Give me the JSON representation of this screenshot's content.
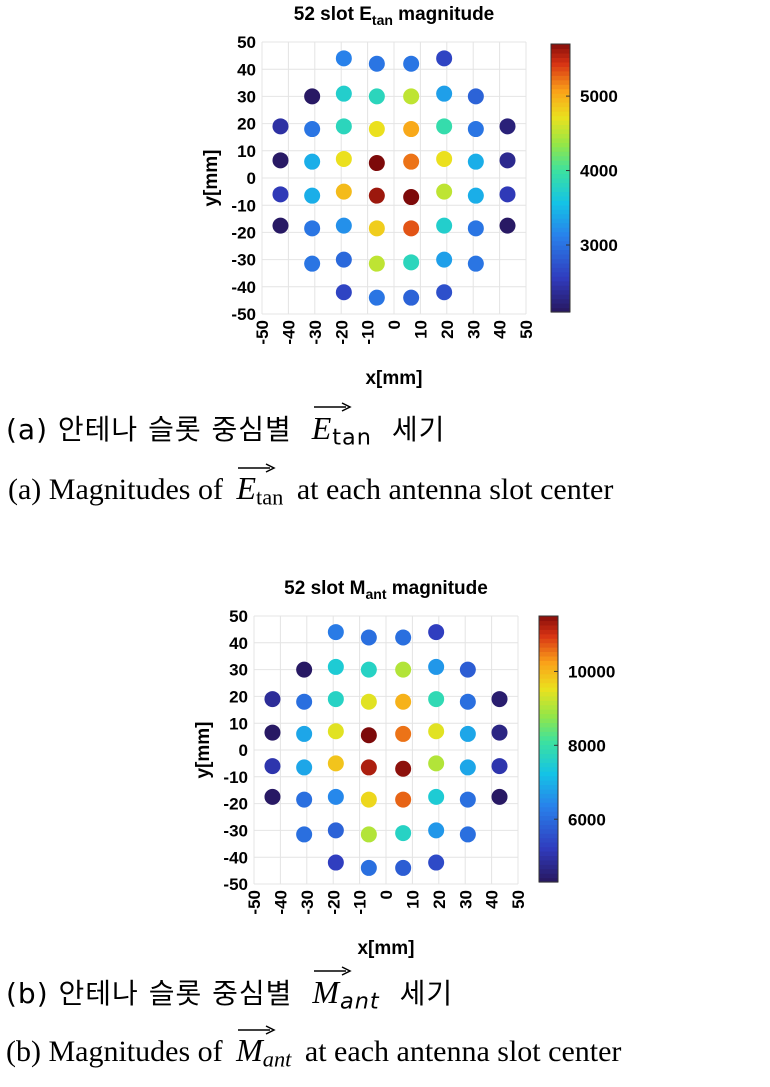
{
  "chart_data": [
    {
      "type": "scatter",
      "title": "52 slot E_tan magnitude",
      "title_main": "52 slot E",
      "title_sub": "tan",
      "title_tail": " magnitude",
      "xlabel": "x[mm]",
      "ylabel": "y[mm]",
      "xlim": [
        -50,
        50
      ],
      "ylim": [
        -50,
        50
      ],
      "xticks": [
        -50,
        -40,
        -30,
        -20,
        -10,
        0,
        10,
        20,
        30,
        40,
        50
      ],
      "yticks": [
        -50,
        -40,
        -30,
        -20,
        -10,
        0,
        10,
        20,
        30,
        40,
        50
      ],
      "grid": true,
      "colorbar": {
        "min": 2100,
        "max": 5700,
        "ticks": [
          3000,
          4000,
          5000
        ]
      },
      "points": [
        {
          "x": -19,
          "y": 44,
          "value": 3100
        },
        {
          "x": -6.5,
          "y": 42,
          "value": 3000
        },
        {
          "x": 6.5,
          "y": 42,
          "value": 3000
        },
        {
          "x": 19,
          "y": 44,
          "value": 2600
        },
        {
          "x": -31,
          "y": 30,
          "value": 2100
        },
        {
          "x": -19,
          "y": 31,
          "value": 3700
        },
        {
          "x": -6.5,
          "y": 30,
          "value": 3800
        },
        {
          "x": 6.5,
          "y": 30,
          "value": 4500
        },
        {
          "x": 19,
          "y": 31,
          "value": 3300
        },
        {
          "x": 31,
          "y": 30,
          "value": 2850
        },
        {
          "x": -43,
          "y": 19,
          "value": 2400
        },
        {
          "x": -31,
          "y": 18,
          "value": 3000
        },
        {
          "x": -19,
          "y": 19,
          "value": 3800
        },
        {
          "x": -6.5,
          "y": 18,
          "value": 4700
        },
        {
          "x": 6.5,
          "y": 18,
          "value": 5000
        },
        {
          "x": 19,
          "y": 19,
          "value": 3900
        },
        {
          "x": 31,
          "y": 18,
          "value": 3000
        },
        {
          "x": 43,
          "y": 19,
          "value": 2200
        },
        {
          "x": -43,
          "y": 6.5,
          "value": 2100
        },
        {
          "x": -31,
          "y": 6,
          "value": 3400
        },
        {
          "x": -19,
          "y": 7,
          "value": 4700
        },
        {
          "x": -6.5,
          "y": 5.5,
          "value": 5700
        },
        {
          "x": 6.5,
          "y": 6,
          "value": 5200
        },
        {
          "x": 19,
          "y": 7,
          "value": 4700
        },
        {
          "x": 31,
          "y": 6,
          "value": 3400
        },
        {
          "x": 43,
          "y": 6.5,
          "value": 2300
        },
        {
          "x": -43,
          "y": -6,
          "value": 2500
        },
        {
          "x": -31,
          "y": -6.5,
          "value": 3400
        },
        {
          "x": -19,
          "y": -5,
          "value": 4900
        },
        {
          "x": -6.5,
          "y": -6.5,
          "value": 5600
        },
        {
          "x": 6.5,
          "y": -7,
          "value": 5700
        },
        {
          "x": 19,
          "y": -5,
          "value": 4500
        },
        {
          "x": 31,
          "y": -6.5,
          "value": 3400
        },
        {
          "x": 43,
          "y": -6,
          "value": 2500
        },
        {
          "x": -43,
          "y": -17.5,
          "value": 2100
        },
        {
          "x": -31,
          "y": -18.5,
          "value": 3000
        },
        {
          "x": -19,
          "y": -17.5,
          "value": 3200
        },
        {
          "x": -6.5,
          "y": -18.5,
          "value": 4800
        },
        {
          "x": 6.5,
          "y": -18.5,
          "value": 5300
        },
        {
          "x": 19,
          "y": -17.5,
          "value": 3700
        },
        {
          "x": 31,
          "y": -18.5,
          "value": 3000
        },
        {
          "x": 43,
          "y": -17.5,
          "value": 2100
        },
        {
          "x": -31,
          "y": -31.5,
          "value": 3000
        },
        {
          "x": -19,
          "y": -30,
          "value": 2900
        },
        {
          "x": -6.5,
          "y": -31.5,
          "value": 4500
        },
        {
          "x": 6.5,
          "y": -31,
          "value": 3800
        },
        {
          "x": 19,
          "y": -30,
          "value": 3300
        },
        {
          "x": 31,
          "y": -31.5,
          "value": 3000
        },
        {
          "x": -19,
          "y": -42,
          "value": 2600
        },
        {
          "x": -6.5,
          "y": -44,
          "value": 3000
        },
        {
          "x": 6.5,
          "y": -44,
          "value": 2850
        },
        {
          "x": 19,
          "y": -42,
          "value": 2700
        }
      ]
    },
    {
      "type": "scatter",
      "title": "52 slot M_ant magnitude",
      "title_main": "52 slot M",
      "title_sub": "ant",
      "title_tail": " magnitude",
      "xlabel": "x[mm]",
      "ylabel": "y[mm]",
      "xlim": [
        -50,
        50
      ],
      "ylim": [
        -50,
        50
      ],
      "xticks": [
        -50,
        -40,
        -30,
        -20,
        -10,
        0,
        10,
        20,
        30,
        40,
        50
      ],
      "yticks": [
        -50,
        -40,
        -30,
        -20,
        -10,
        0,
        10,
        20,
        30,
        40,
        50
      ],
      "grid": true,
      "colorbar": {
        "min": 4300,
        "max": 11500,
        "ticks": [
          6000,
          8000,
          10000
        ]
      },
      "points": [
        {
          "x": -19,
          "y": 44,
          "value": 6200
        },
        {
          "x": -6.5,
          "y": 42,
          "value": 6000
        },
        {
          "x": 6.5,
          "y": 42,
          "value": 6000
        },
        {
          "x": 19,
          "y": 44,
          "value": 5200
        },
        {
          "x": -31,
          "y": 30,
          "value": 4300
        },
        {
          "x": -19,
          "y": 31,
          "value": 7400
        },
        {
          "x": -6.5,
          "y": 30,
          "value": 7600
        },
        {
          "x": 6.5,
          "y": 30,
          "value": 9000
        },
        {
          "x": 19,
          "y": 31,
          "value": 6600
        },
        {
          "x": 31,
          "y": 30,
          "value": 5700
        },
        {
          "x": -43,
          "y": 19,
          "value": 4800
        },
        {
          "x": -31,
          "y": 18,
          "value": 6000
        },
        {
          "x": -19,
          "y": 19,
          "value": 7600
        },
        {
          "x": -6.5,
          "y": 18,
          "value": 9400
        },
        {
          "x": 6.5,
          "y": 18,
          "value": 10000
        },
        {
          "x": 19,
          "y": 19,
          "value": 7800
        },
        {
          "x": 31,
          "y": 18,
          "value": 6000
        },
        {
          "x": 43,
          "y": 19,
          "value": 4400
        },
        {
          "x": -43,
          "y": 6.5,
          "value": 4300
        },
        {
          "x": -31,
          "y": 6,
          "value": 6800
        },
        {
          "x": -19,
          "y": 7,
          "value": 9400
        },
        {
          "x": -6.5,
          "y": 5.5,
          "value": 11500
        },
        {
          "x": 6.5,
          "y": 6,
          "value": 10500
        },
        {
          "x": 19,
          "y": 7,
          "value": 9400
        },
        {
          "x": 31,
          "y": 6,
          "value": 6800
        },
        {
          "x": 43,
          "y": 6.5,
          "value": 4600
        },
        {
          "x": -43,
          "y": -6,
          "value": 5000
        },
        {
          "x": -31,
          "y": -6.5,
          "value": 6800
        },
        {
          "x": -19,
          "y": -5,
          "value": 9800
        },
        {
          "x": -6.5,
          "y": -6.5,
          "value": 11200
        },
        {
          "x": 6.5,
          "y": -7,
          "value": 11400
        },
        {
          "x": 19,
          "y": -5,
          "value": 9000
        },
        {
          "x": 31,
          "y": -6.5,
          "value": 6800
        },
        {
          "x": 43,
          "y": -6,
          "value": 5000
        },
        {
          "x": -43,
          "y": -17.5,
          "value": 4300
        },
        {
          "x": -31,
          "y": -18.5,
          "value": 6000
        },
        {
          "x": -19,
          "y": -17.5,
          "value": 6400
        },
        {
          "x": -6.5,
          "y": -18.5,
          "value": 9600
        },
        {
          "x": 6.5,
          "y": -18.5,
          "value": 10600
        },
        {
          "x": 19,
          "y": -17.5,
          "value": 7400
        },
        {
          "x": 31,
          "y": -18.5,
          "value": 6000
        },
        {
          "x": 43,
          "y": -17.5,
          "value": 4300
        },
        {
          "x": -31,
          "y": -31.5,
          "value": 6000
        },
        {
          "x": -19,
          "y": -30,
          "value": 5800
        },
        {
          "x": -6.5,
          "y": -31.5,
          "value": 9000
        },
        {
          "x": 6.5,
          "y": -31,
          "value": 7600
        },
        {
          "x": 19,
          "y": -30,
          "value": 6600
        },
        {
          "x": 31,
          "y": -31.5,
          "value": 6000
        },
        {
          "x": -19,
          "y": -42,
          "value": 5200
        },
        {
          "x": -6.5,
          "y": -44,
          "value": 6000
        },
        {
          "x": 6.5,
          "y": -44,
          "value": 5700
        },
        {
          "x": 19,
          "y": -42,
          "value": 5400
        }
      ]
    }
  ],
  "captions": {
    "a_ko_prefix": "(a) 안테나 슬롯 중심별",
    "a_ko_suffix": "세기",
    "a_en_prefix": "(a) Magnitudes of",
    "a_en_suffix": "at each antenna slot center",
    "a_symbol": "E",
    "a_symbol_sub": "tan",
    "b_ko_prefix": "(b) 안테나 슬롯 중심별",
    "b_ko_suffix": "세기",
    "b_en_prefix": "(b) Magnitudes of",
    "b_en_suffix": "at each antenna slot center",
    "b_symbol": "M",
    "b_symbol_sub": "ant"
  }
}
